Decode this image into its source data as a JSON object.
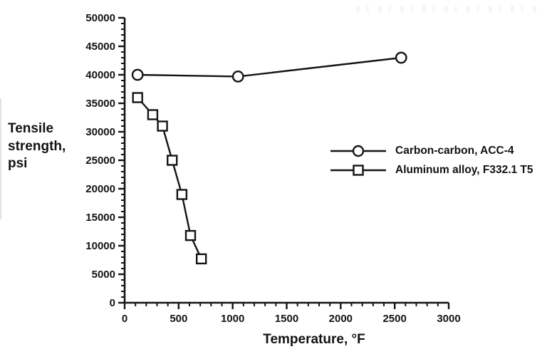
{
  "chart_data": {
    "type": "line",
    "title": "",
    "xlabel": "Temperature, °F",
    "ylabel": "Tensile strength, psi",
    "xlim": [
      0,
      3000
    ],
    "ylim": [
      0,
      50000
    ],
    "x_tick_major": 500,
    "x_tick_minor": 100,
    "y_tick_major": 5000,
    "y_tick_minor": 1000,
    "grid": false,
    "legend_position": "right-middle",
    "marker_fill": "#ffffff",
    "ink_color": "#141414",
    "background_color": "#ffffff",
    "series": [
      {
        "name": "Carbon-carbon, ACC-4",
        "marker": "circle",
        "points": [
          [
            120,
            40000
          ],
          [
            1050,
            39700
          ],
          [
            2560,
            43000
          ]
        ]
      },
      {
        "name": "Aluminum alloy, F332.1 T5",
        "marker": "square",
        "points": [
          [
            120,
            36000
          ],
          [
            260,
            33000
          ],
          [
            350,
            31000
          ],
          [
            440,
            25000
          ],
          [
            530,
            19000
          ],
          [
            610,
            11800
          ],
          [
            710,
            7700
          ]
        ]
      }
    ]
  }
}
